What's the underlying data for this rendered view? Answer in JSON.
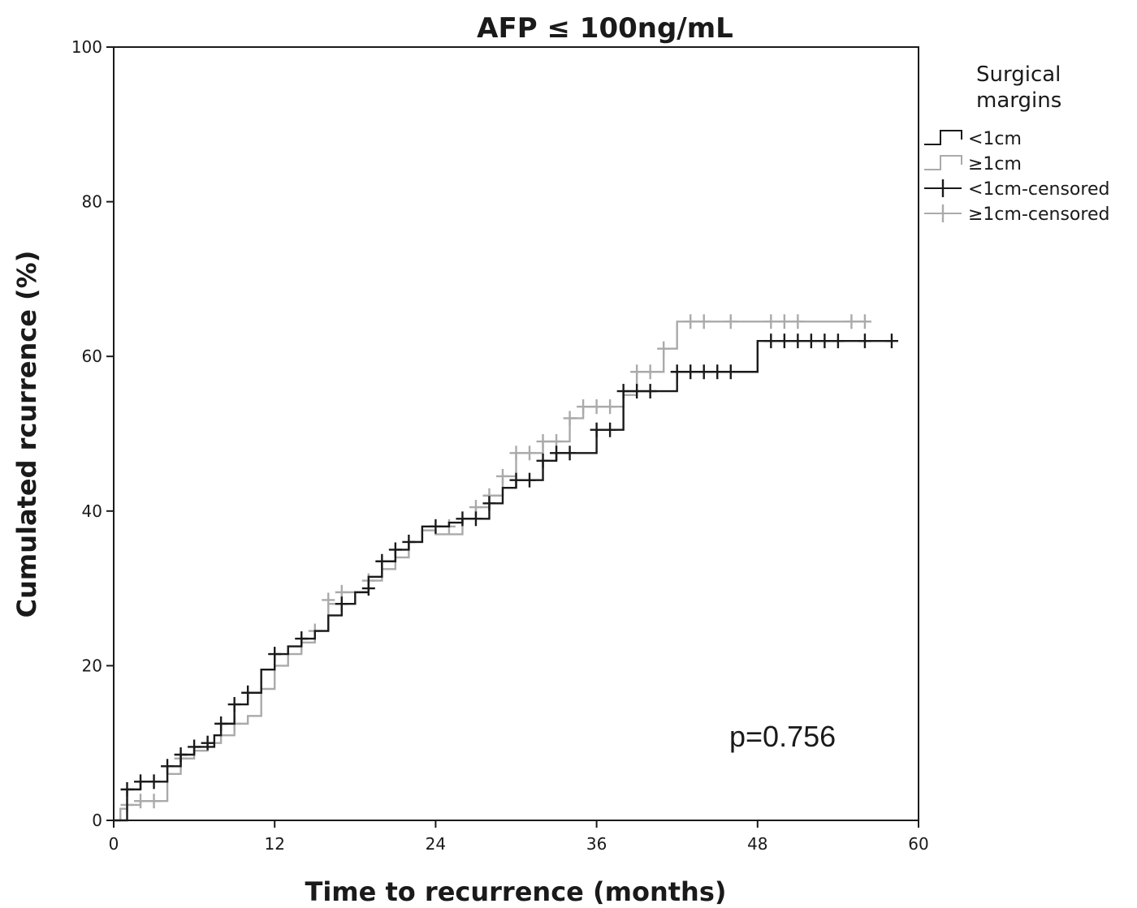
{
  "chart_data": {
    "type": "line",
    "title": "AFP ≤ 100ng/mL",
    "xlabel": "Time to recurrence (months)",
    "ylabel": "Cumulated rcurrence (%)",
    "xlim": [
      0,
      60
    ],
    "ylim": [
      0,
      100
    ],
    "x_ticks": [
      0,
      12,
      24,
      36,
      48,
      60
    ],
    "y_ticks": [
      0,
      20,
      40,
      60,
      80,
      100
    ],
    "grid": false,
    "legend_title_lines": [
      "Surgical",
      "margins"
    ],
    "legend_placement": "right",
    "legend": [
      {
        "label": "<1cm",
        "kind": "step",
        "color": "#1a1a1a"
      },
      {
        "label": "≥1cm",
        "kind": "step",
        "color": "#aaaaaa"
      },
      {
        "label": "<1cm-censored",
        "kind": "cross",
        "color": "#1a1a1a"
      },
      {
        "label": "≥1cm-censored",
        "kind": "cross",
        "color": "#aaaaaa"
      }
    ],
    "annotation": "p=0.756",
    "series": [
      {
        "name": "<1cm",
        "color": "#1a1a1a",
        "steps": [
          [
            0,
            0
          ],
          [
            1,
            4
          ],
          [
            2,
            5
          ],
          [
            4,
            7
          ],
          [
            5,
            8.5
          ],
          [
            6,
            9.5
          ],
          [
            7.5,
            11
          ],
          [
            8,
            12.5
          ],
          [
            9,
            15
          ],
          [
            10,
            16.5
          ],
          [
            11,
            19.5
          ],
          [
            12,
            21.5
          ],
          [
            13,
            22.5
          ],
          [
            14,
            23.5
          ],
          [
            15,
            24.5
          ],
          [
            16,
            26.5
          ],
          [
            17,
            28
          ],
          [
            18,
            29.5
          ],
          [
            19,
            31.5
          ],
          [
            20,
            33.5
          ],
          [
            21,
            35
          ],
          [
            22,
            36
          ],
          [
            23,
            38
          ],
          [
            25,
            38.5
          ],
          [
            26,
            39
          ],
          [
            28,
            41
          ],
          [
            29,
            43
          ],
          [
            30,
            44
          ],
          [
            32,
            46.5
          ],
          [
            33,
            47.5
          ],
          [
            36,
            50.5
          ],
          [
            38,
            55.5
          ],
          [
            42,
            58
          ],
          [
            48,
            62
          ],
          [
            58,
            62
          ]
        ],
        "censored": [
          [
            1,
            4
          ],
          [
            2,
            5
          ],
          [
            3,
            5
          ],
          [
            4,
            7
          ],
          [
            5,
            8.5
          ],
          [
            6,
            9.5
          ],
          [
            7,
            10
          ],
          [
            8,
            12.5
          ],
          [
            9,
            15
          ],
          [
            10,
            16.5
          ],
          [
            12,
            21.5
          ],
          [
            14,
            23.5
          ],
          [
            17,
            28
          ],
          [
            19,
            30
          ],
          [
            20,
            33.5
          ],
          [
            21,
            35
          ],
          [
            22,
            36
          ],
          [
            24,
            38
          ],
          [
            26,
            39
          ],
          [
            27,
            39
          ],
          [
            28,
            41
          ],
          [
            30,
            44
          ],
          [
            31,
            44
          ],
          [
            32,
            46.5
          ],
          [
            33,
            47.5
          ],
          [
            34,
            47.5
          ],
          [
            36,
            50.5
          ],
          [
            37,
            50.5
          ],
          [
            38,
            55.5
          ],
          [
            39,
            55.5
          ],
          [
            40,
            55.5
          ],
          [
            42,
            58
          ],
          [
            43,
            58
          ],
          [
            44,
            58
          ],
          [
            45,
            58
          ],
          [
            46,
            58
          ],
          [
            49,
            62
          ],
          [
            50,
            62
          ],
          [
            51,
            62
          ],
          [
            52,
            62
          ],
          [
            53,
            62
          ],
          [
            54,
            62
          ],
          [
            56,
            62
          ],
          [
            58,
            62
          ]
        ]
      },
      {
        "name": "≥1cm",
        "color": "#aaaaaa",
        "steps": [
          [
            0,
            0
          ],
          [
            0.5,
            1.5
          ],
          [
            1,
            2
          ],
          [
            2,
            2.5
          ],
          [
            4,
            6
          ],
          [
            5,
            8
          ],
          [
            6,
            9
          ],
          [
            7,
            10
          ],
          [
            8,
            11
          ],
          [
            9,
            12.5
          ],
          [
            10,
            13.5
          ],
          [
            11,
            17
          ],
          [
            12,
            20
          ],
          [
            13,
            21.5
          ],
          [
            14,
            23
          ],
          [
            15,
            24.5
          ],
          [
            16,
            28
          ],
          [
            17,
            29.5
          ],
          [
            19,
            31
          ],
          [
            20,
            32.5
          ],
          [
            21,
            34
          ],
          [
            22,
            36
          ],
          [
            23,
            37.5
          ],
          [
            24,
            37
          ],
          [
            26,
            39
          ],
          [
            27,
            40.5
          ],
          [
            28,
            42
          ],
          [
            29,
            44.5
          ],
          [
            30,
            47.5
          ],
          [
            32,
            49
          ],
          [
            34,
            52
          ],
          [
            35,
            53.5
          ],
          [
            38,
            55
          ],
          [
            39,
            58
          ],
          [
            41,
            61
          ],
          [
            42,
            64.5
          ],
          [
            56,
            64.5
          ]
        ],
        "censored": [
          [
            1,
            2
          ],
          [
            2,
            2.5
          ],
          [
            3,
            2.5
          ],
          [
            5,
            8
          ],
          [
            7,
            10
          ],
          [
            9,
            12.5
          ],
          [
            15,
            24.5
          ],
          [
            16,
            28.5
          ],
          [
            17,
            29.5
          ],
          [
            19,
            31
          ],
          [
            25,
            38
          ],
          [
            27,
            40.5
          ],
          [
            28,
            42
          ],
          [
            29,
            44.5
          ],
          [
            30,
            47.5
          ],
          [
            31,
            47.5
          ],
          [
            32,
            49
          ],
          [
            33,
            49
          ],
          [
            34,
            52
          ],
          [
            35,
            53.5
          ],
          [
            36,
            53.5
          ],
          [
            37,
            53.5
          ],
          [
            39,
            58
          ],
          [
            40,
            58
          ],
          [
            41,
            61
          ],
          [
            43,
            64.5
          ],
          [
            44,
            64.5
          ],
          [
            46,
            64.5
          ],
          [
            49,
            64.5
          ],
          [
            50,
            64.5
          ],
          [
            51,
            64.5
          ],
          [
            55,
            64.5
          ],
          [
            56,
            64.5
          ]
        ]
      }
    ]
  }
}
